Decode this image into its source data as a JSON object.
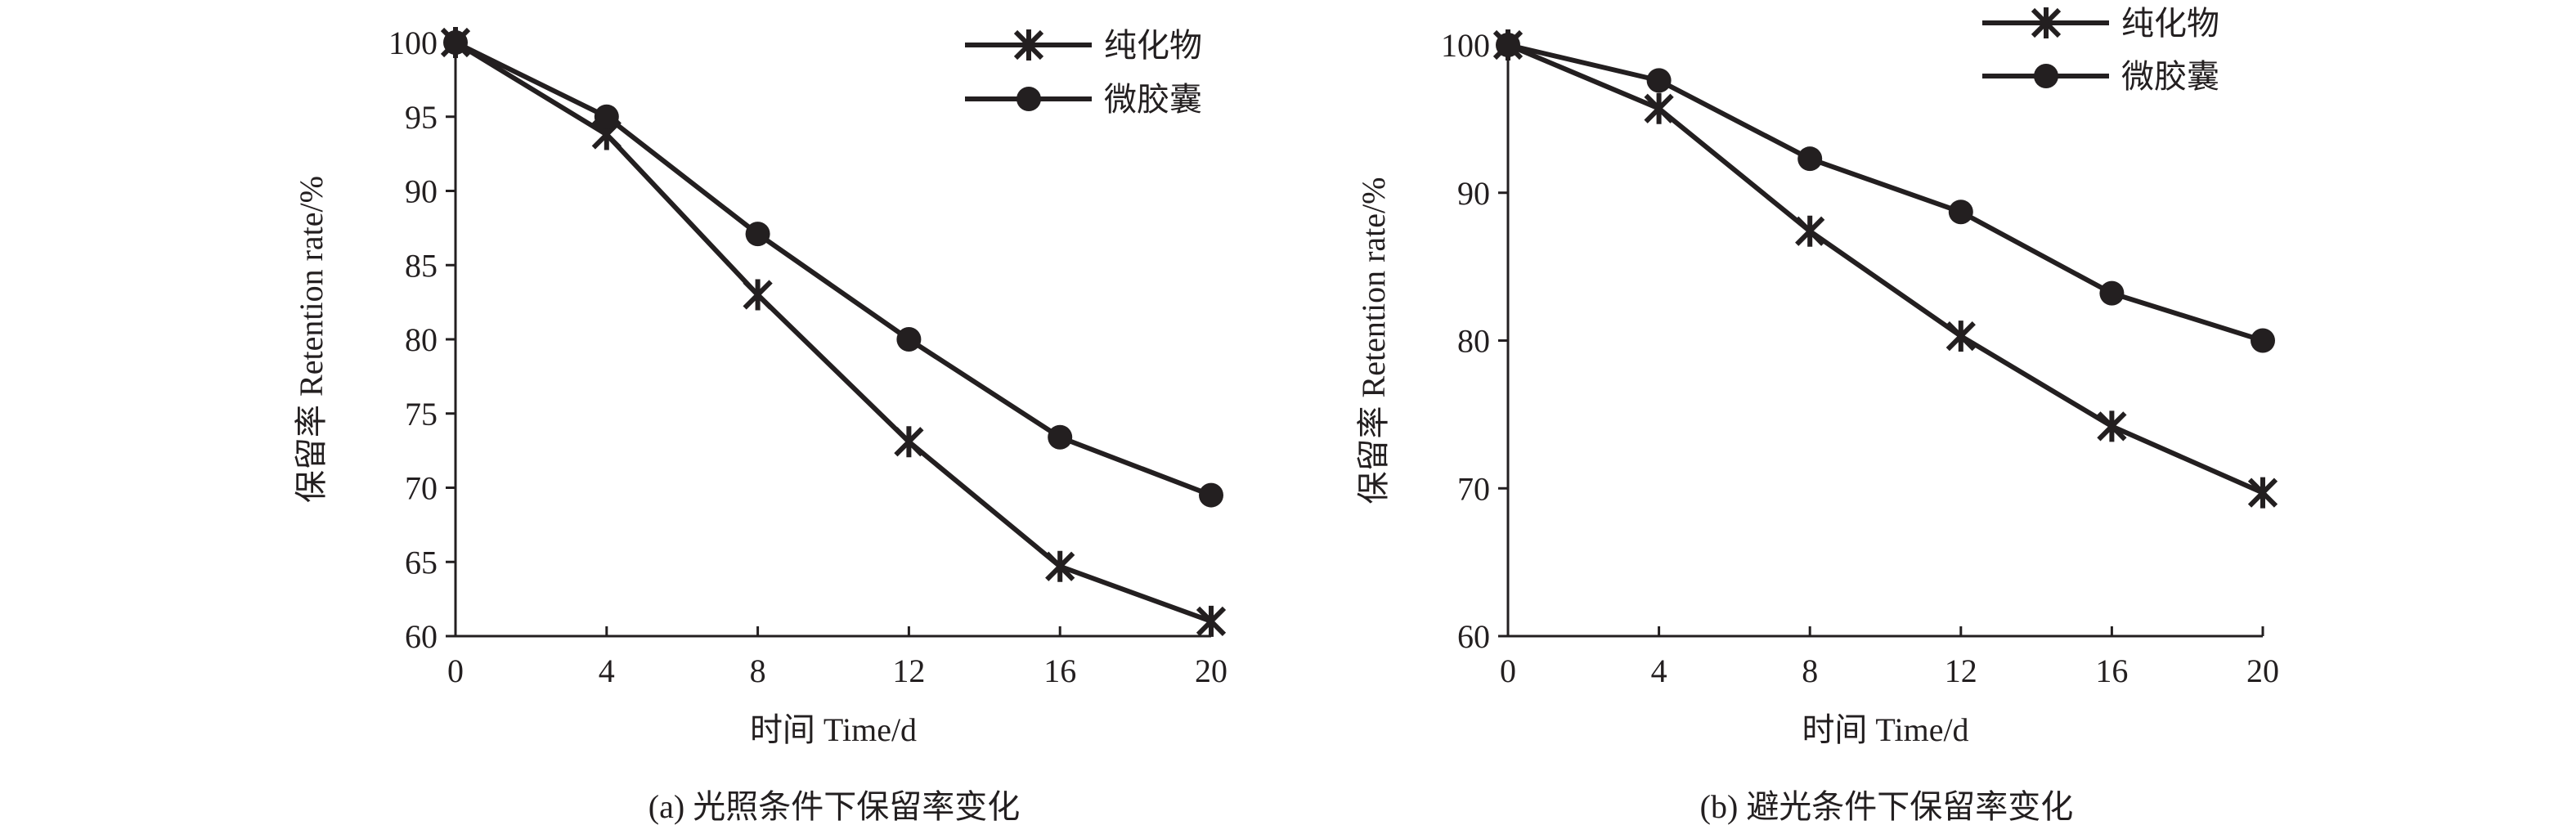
{
  "chart_data": [
    {
      "type": "line",
      "caption": "(a) 光照条件下保留率变化",
      "xlabel": "时间 Time/d",
      "ylabel": "保留率 Retention rate/%",
      "x": [
        0,
        4,
        8,
        12,
        16,
        20
      ],
      "xticks": [
        "0",
        "4",
        "8",
        "12",
        "16",
        "20"
      ],
      "yticks": [
        "60",
        "65",
        "70",
        "75",
        "80",
        "85",
        "90",
        "95",
        "100"
      ],
      "ylim": [
        60,
        100
      ],
      "xlim": [
        0,
        20
      ],
      "grid": false,
      "legend_position": "top-right",
      "series": [
        {
          "name": "纯化物",
          "marker": "asterisk",
          "values": [
            100,
            93.8,
            83.0,
            73.1,
            64.7,
            61.0
          ]
        },
        {
          "name": "微胶囊",
          "marker": "circle",
          "values": [
            100,
            95.0,
            87.1,
            80.0,
            73.4,
            69.5
          ]
        }
      ]
    },
    {
      "type": "line",
      "caption": "(b) 避光条件下保留率变化",
      "xlabel": "时间 Time/d",
      "ylabel": "保留率 Retention rate/%",
      "x": [
        0,
        4,
        8,
        12,
        16,
        20
      ],
      "xticks": [
        "0",
        "4",
        "8",
        "12",
        "16",
        "20"
      ],
      "yticks": [
        "60",
        "70",
        "80",
        "90",
        "100"
      ],
      "ylim": [
        60,
        100
      ],
      "xlim": [
        0,
        20
      ],
      "grid": false,
      "legend_position": "top-right",
      "series": [
        {
          "name": "纯化物",
          "marker": "asterisk",
          "values": [
            100,
            95.7,
            87.4,
            80.3,
            74.2,
            69.7
          ]
        },
        {
          "name": "微胶囊",
          "marker": "circle",
          "values": [
            100,
            97.6,
            92.3,
            88.7,
            83.2,
            80.0
          ]
        }
      ]
    }
  ],
  "colors": {
    "ink": "#231f20"
  }
}
